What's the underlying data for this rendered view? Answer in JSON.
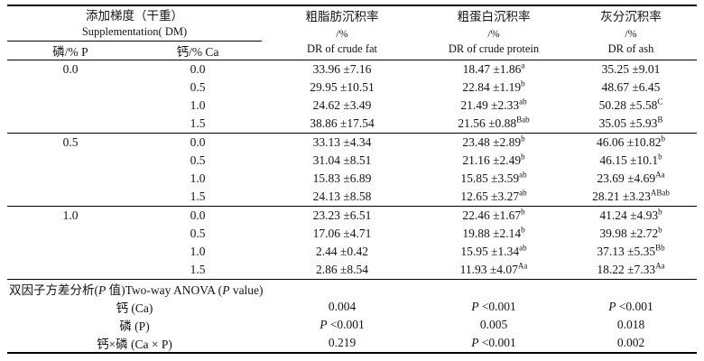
{
  "table": {
    "header": {
      "supplementation": {
        "zh": "添加梯度（干重）",
        "en": "Supplementation( DM)"
      },
      "p_col": "磷/% P",
      "ca_col": "钙/% Ca",
      "fat": {
        "zh": "粗脂肪沉积率",
        "unit": "/%",
        "en": "DR of crude fat"
      },
      "protein": {
        "zh": "粗蛋白沉积率",
        "unit": "/%",
        "en": "DR of crude protein"
      },
      "ash": {
        "zh": "灰分沉积率",
        "unit": "/%",
        "en": "DR of ash"
      }
    },
    "groups": [
      {
        "p": "0.0",
        "rows": [
          {
            "ca": "0.0",
            "fat": "33.96 ±7.16",
            "fat_sup": "",
            "protein": "18.47 ±1.86",
            "protein_sup": "a",
            "ash": "35.25 ±9.01",
            "ash_sup": ""
          },
          {
            "ca": "0.5",
            "fat": "29.95 ±10.51",
            "fat_sup": "",
            "protein": "22.84 ±1.19",
            "protein_sup": "b",
            "ash": "48.67 ±6.45",
            "ash_sup": ""
          },
          {
            "ca": "1.0",
            "fat": "24.62 ±3.49",
            "fat_sup": "",
            "protein": "21.49 ±2.33",
            "protein_sup": "ab",
            "ash": "50.28 ±5.58",
            "ash_sup": "C"
          },
          {
            "ca": "1.5",
            "fat": "38.86 ±17.54",
            "fat_sup": "",
            "protein": "21.56 ±0.88",
            "protein_sup": "Bab",
            "ash": "35.05 ±5.93",
            "ash_sup": "B"
          }
        ]
      },
      {
        "p": "0.5",
        "rows": [
          {
            "ca": "0.0",
            "fat": "33.13 ±4.34",
            "fat_sup": "",
            "protein": "23.48 ±2.89",
            "protein_sup": "b",
            "ash": "46.06 ±10.82",
            "ash_sup": "b"
          },
          {
            "ca": "0.5",
            "fat": "31.04 ±8.51",
            "fat_sup": "",
            "protein": "21.16 ±2.49",
            "protein_sup": "b",
            "ash": "46.15 ±10.1",
            "ash_sup": "b"
          },
          {
            "ca": "1.0",
            "fat": "15.83 ±6.89",
            "fat_sup": "",
            "protein": "15.85 ±3.59",
            "protein_sup": "ab",
            "ash": "23.69 ±4.69",
            "ash_sup": "Aa"
          },
          {
            "ca": "1.5",
            "fat": "24.13 ±8.58",
            "fat_sup": "",
            "protein": "12.65 ±3.27",
            "protein_sup": "ab",
            "ash": "28.21 ±3.23",
            "ash_sup": "ABab"
          }
        ]
      },
      {
        "p": "1.0",
        "rows": [
          {
            "ca": "0.0",
            "fat": "23.23 ±6.51",
            "fat_sup": "",
            "protein": "22.46 ±1.67",
            "protein_sup": "b",
            "ash": "41.24 ±4.93",
            "ash_sup": "b"
          },
          {
            "ca": "0.5",
            "fat": "17.06 ±4.71",
            "fat_sup": "",
            "protein": "19.88 ±2.14",
            "protein_sup": "b",
            "ash": "39.98 ±2.72",
            "ash_sup": "b"
          },
          {
            "ca": "1.0",
            "fat": "2.44 ±0.42",
            "fat_sup": "",
            "protein": "15.95 ±1.34",
            "protein_sup": "ab",
            "ash": "37.13 ±5.35",
            "ash_sup": "Bb"
          },
          {
            "ca": "1.5",
            "fat": "2.86 ±8.54",
            "fat_sup": "",
            "protein": "11.93 ±4.07",
            "protein_sup": "Aa",
            "ash": "18.22 ±7.33",
            "ash_sup": "Aa"
          }
        ]
      }
    ],
    "anova": {
      "title_segments": [
        {
          "text": "双因子方差分析(",
          "italic": false
        },
        {
          "text": "P",
          "italic": true
        },
        {
          "text": " 值)Two-way ANOVA (",
          "italic": false
        },
        {
          "text": "P",
          "italic": true
        },
        {
          "text": " value)",
          "italic": false
        }
      ],
      "rows": [
        {
          "label": "钙 (Ca)",
          "fat": "0.004",
          "protein": "P <0.001",
          "ash": "P <0.001"
        },
        {
          "label": "磷 (P)",
          "fat": "P <0.001",
          "protein": "0.005",
          "ash": "0.018"
        },
        {
          "label": "钙×磷 (Ca × P)",
          "fat": "0.219",
          "protein": "P <0.001",
          "ash": "0.002"
        }
      ]
    }
  }
}
